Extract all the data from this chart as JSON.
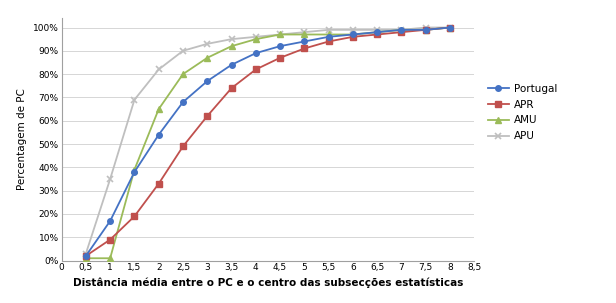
{
  "x": [
    0.5,
    1.0,
    1.5,
    2.0,
    2.5,
    3.0,
    3.5,
    4.0,
    4.5,
    5.0,
    5.5,
    6.0,
    6.5,
    7.0,
    7.5,
    8.0
  ],
  "Portugal": [
    0.02,
    0.17,
    0.38,
    0.54,
    0.68,
    0.77,
    0.84,
    0.89,
    0.92,
    0.94,
    0.96,
    0.97,
    0.98,
    0.99,
    0.99,
    1.0
  ],
  "APR": [
    0.02,
    0.09,
    0.19,
    0.33,
    0.49,
    0.62,
    0.74,
    0.82,
    0.87,
    0.91,
    0.94,
    0.96,
    0.97,
    0.98,
    0.99,
    1.0
  ],
  "AMU": [
    0.01,
    0.01,
    0.39,
    0.65,
    0.8,
    0.87,
    0.92,
    0.95,
    0.97,
    0.97,
    0.97,
    0.97,
    0.98,
    0.99,
    0.99,
    1.0
  ],
  "APU": [
    0.03,
    0.35,
    0.69,
    0.82,
    0.9,
    0.93,
    0.95,
    0.96,
    0.97,
    0.98,
    0.99,
    0.99,
    0.99,
    0.99,
    1.0,
    1.0
  ],
  "Portugal_color": "#4472C4",
  "APR_color": "#C0504D",
  "AMU_color": "#9BBB59",
  "APU_color": "#BFBFBF",
  "xlabel": "Distância média entre o PC e o centro das subsecções estatísticas",
  "ylabel": "Percentagem de PC",
  "xlim": [
    0,
    8.5
  ],
  "xticks": [
    0,
    0.5,
    1.0,
    1.5,
    2.0,
    2.5,
    3.0,
    3.5,
    4.0,
    4.5,
    5.0,
    5.5,
    6.0,
    6.5,
    7.0,
    7.5,
    8.0,
    8.5
  ],
  "yticks": [
    0.0,
    0.1,
    0.2,
    0.3,
    0.4,
    0.5,
    0.6,
    0.7,
    0.8,
    0.9,
    1.0
  ],
  "ytick_labels": [
    "0%",
    "10%",
    "20%",
    "30%",
    "40%",
    "50%",
    "60%",
    "70%",
    "80%",
    "90%",
    "100%"
  ],
  "xtick_labels": [
    "0",
    "0,5",
    "1",
    "1,5",
    "2",
    "2,5",
    "3",
    "3,5",
    "4",
    "4,5",
    "5",
    "5,5",
    "6",
    "6,5",
    "7",
    "7,5",
    "8",
    "8,5"
  ],
  "legend_labels": [
    "Portugal",
    "APR",
    "AMU",
    "APU"
  ],
  "background_color": "#FFFFFF",
  "grid_color": "#D0D0D0"
}
